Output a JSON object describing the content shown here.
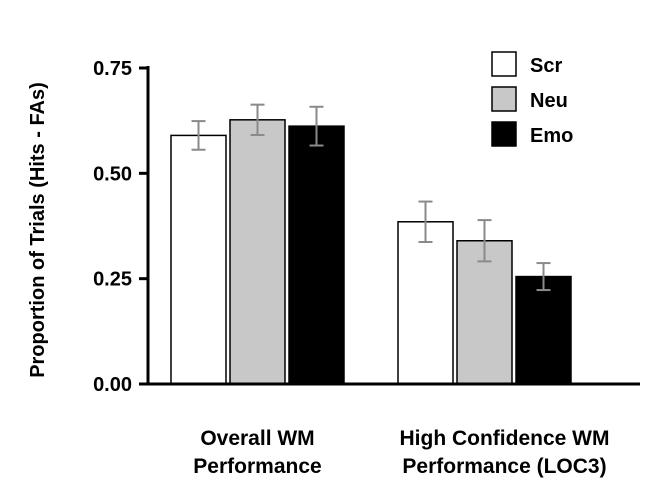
{
  "chart_data": {
    "type": "bar",
    "title": "",
    "ylabel": "Proportion of Trials (Hits - FAs)",
    "xlabel": "",
    "ylim": [
      0,
      0.75
    ],
    "yticks": [
      0.0,
      0.25,
      0.5,
      0.75
    ],
    "ytick_labels": [
      "0.00",
      "0.25",
      "0.50",
      "0.75"
    ],
    "categories": [
      [
        "Overall WM",
        "Performance"
      ],
      [
        "High Confidence WM",
        "Performance (LOC3)"
      ]
    ],
    "series": [
      {
        "name": "Scr",
        "color": "#ffffff",
        "values": [
          0.59,
          0.385
        ],
        "errors": [
          0.034,
          0.048
        ]
      },
      {
        "name": "Neu",
        "color": "#c8c8c8",
        "values": [
          0.627,
          0.34
        ],
        "errors": [
          0.036,
          0.049
        ]
      },
      {
        "name": "Emo",
        "color": "#000000",
        "values": [
          0.612,
          0.255
        ],
        "errors": [
          0.046,
          0.032
        ]
      }
    ],
    "legend_position": "top-right",
    "grid": false,
    "error_bars": true
  }
}
